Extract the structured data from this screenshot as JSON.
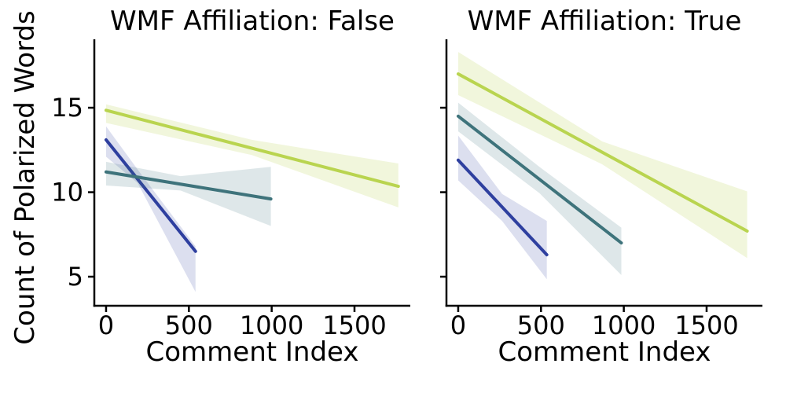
{
  "figure": {
    "background": "#ffffff",
    "text_color": "#000000",
    "axis_color": "#000000"
  },
  "chart_data": [
    {
      "type": "line",
      "title": "WMF Affiliation: False",
      "xlabel": "Comment Index",
      "ylabel": "Count of Polarized Words",
      "xlim": [
        -71,
        1837
      ],
      "ylim": [
        3.28,
        19.05
      ],
      "xticks": [
        0,
        500,
        1000,
        1500
      ],
      "yticks": [
        5,
        10,
        15
      ],
      "show_ytick_labels": true,
      "grid": false,
      "legend": "none",
      "series": [
        {
          "name": "blue",
          "color": "#2e3f9f",
          "band_color": "rgba(46, 63, 159, 0.17)",
          "x": [
            0,
            540
          ],
          "y": [
            13.1,
            6.5
          ],
          "band": {
            "x": [
              0,
              190,
              540
            ],
            "top": [
              13.9,
              11.35,
              6.8
            ],
            "bottom": [
              12.1,
              10.55,
              4.1
            ]
          }
        },
        {
          "name": "teal",
          "color": "#3e737b",
          "band_color": "rgba(62, 115, 123, 0.17)",
          "x": [
            0,
            995
          ],
          "y": [
            11.2,
            9.6
          ],
          "band": {
            "x": [
              0,
              450,
              995
            ],
            "top": [
              11.8,
              10.95,
              11.5
            ],
            "bottom": [
              10.4,
              10.1,
              8.0
            ]
          }
        },
        {
          "name": "green",
          "color": "#b9d44f",
          "band_color": "rgba(185, 212, 79, 0.20)",
          "x": [
            0,
            1765
          ],
          "y": [
            14.85,
            10.35
          ],
          "band": {
            "x": [
              0,
              880,
              1765
            ],
            "top": [
              15.2,
              13.1,
              11.7
            ],
            "bottom": [
              14.1,
              12.2,
              9.1
            ]
          }
        }
      ]
    },
    {
      "type": "line",
      "title": "WMF Affiliation: True",
      "xlabel": "Comment Index",
      "ylabel": "Count of Polarized Words",
      "xlim": [
        -71,
        1837
      ],
      "ylim": [
        3.28,
        19.05
      ],
      "xticks": [
        0,
        500,
        1000,
        1500
      ],
      "yticks": [
        5,
        10,
        15
      ],
      "show_ytick_labels": false,
      "grid": false,
      "legend": "none",
      "series": [
        {
          "name": "blue",
          "color": "#2e3f9f",
          "band_color": "rgba(46, 63, 159, 0.17)",
          "x": [
            0,
            535
          ],
          "y": [
            11.9,
            6.3
          ],
          "band": {
            "x": [
              0,
              265,
              535
            ],
            "top": [
              13.35,
              9.9,
              8.3
            ],
            "bottom": [
              10.7,
              8.3,
              4.85
            ]
          }
        },
        {
          "name": "teal",
          "color": "#3e737b",
          "band_color": "rgba(62, 115, 123, 0.17)",
          "x": [
            0,
            985
          ],
          "y": [
            14.5,
            7.0
          ],
          "band": {
            "x": [
              0,
              490,
              985
            ],
            "top": [
              15.3,
              11.5,
              7.9
            ],
            "bottom": [
              13.6,
              9.95,
              5.1
            ]
          }
        },
        {
          "name": "green",
          "color": "#b9d44f",
          "band_color": "rgba(185, 212, 79, 0.20)",
          "x": [
            0,
            1745
          ],
          "y": [
            17.0,
            7.7
          ],
          "band": {
            "x": [
              0,
              870,
              1745
            ],
            "top": [
              18.3,
              13.0,
              10.05
            ],
            "bottom": [
              15.75,
              11.65,
              6.1
            ]
          }
        }
      ]
    }
  ]
}
